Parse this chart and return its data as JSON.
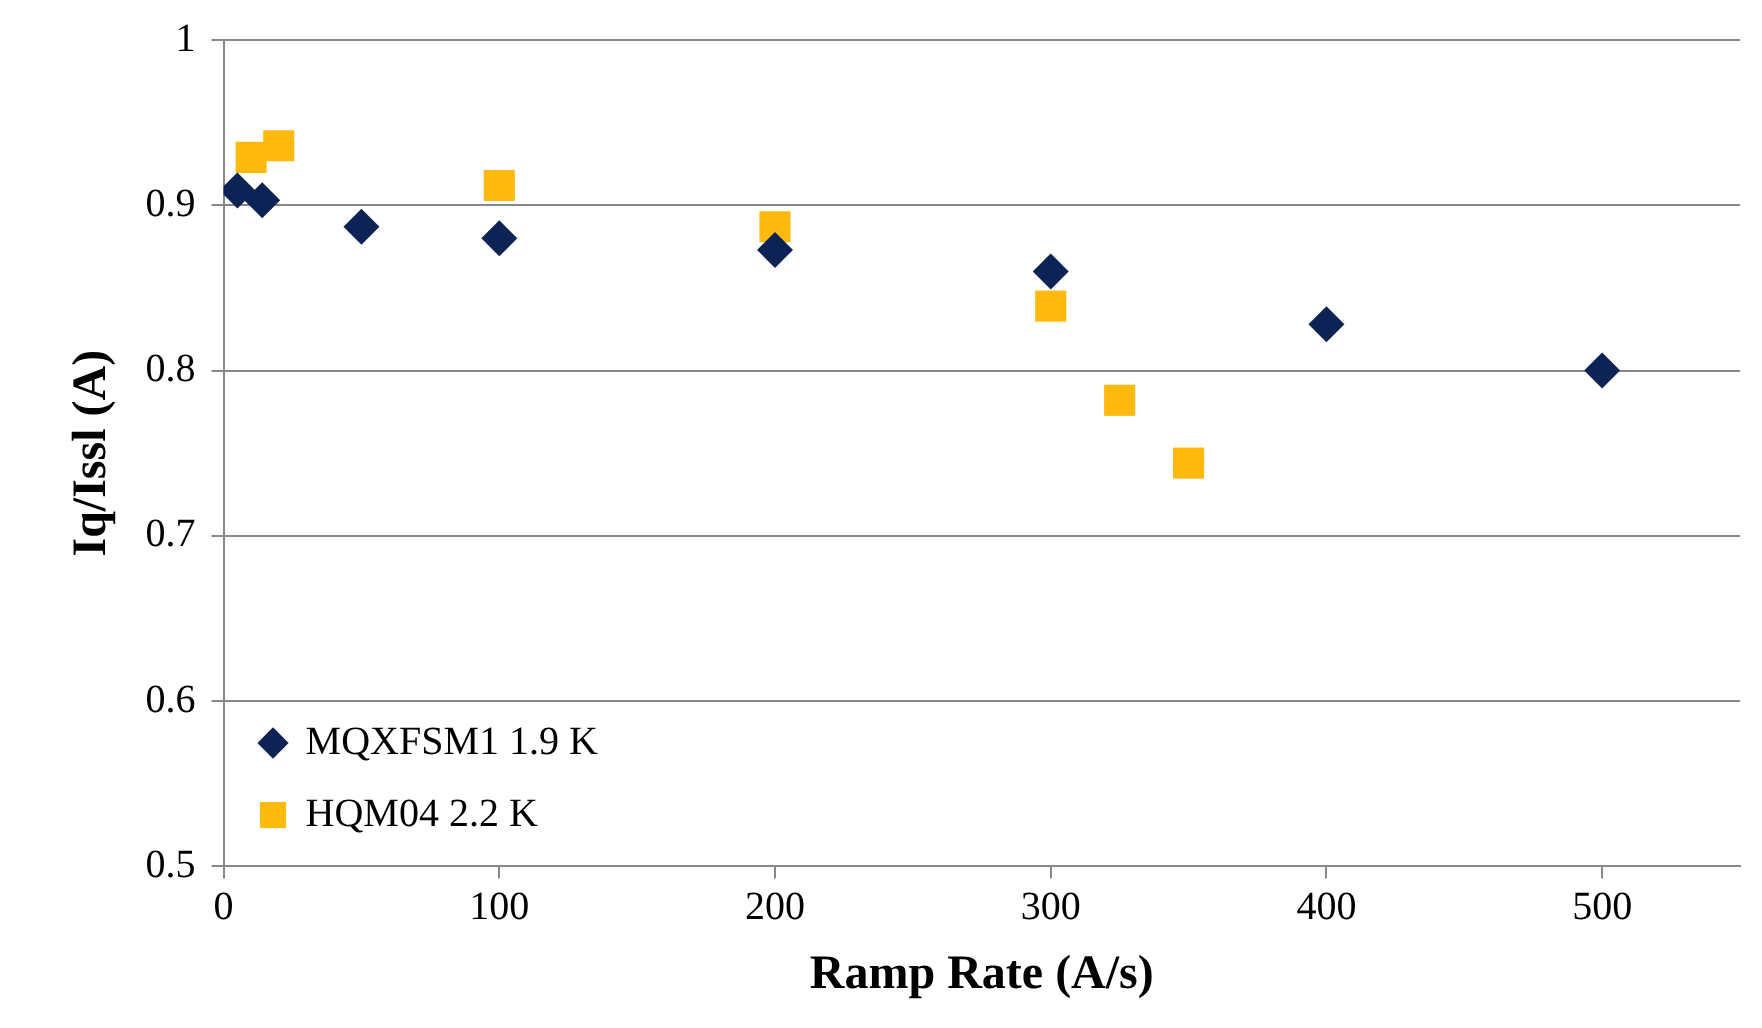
{
  "chart_data": {
    "type": "scatter",
    "xlabel": "Ramp Rate (A/s)",
    "ylabel": "Iq/Issl (A)",
    "xlim": [
      0,
      550
    ],
    "xticks": [
      0,
      100,
      200,
      300,
      400,
      500
    ],
    "ylim": [
      0.5,
      1
    ],
    "yticks": [
      0.5,
      0.6,
      0.7,
      0.8,
      0.9,
      1
    ],
    "grid": "y",
    "legend": "bottom left",
    "series": [
      {
        "name": "MQXFSM1 1.9 K",
        "color": "#0d2356",
        "marker": "diamond",
        "x": [
          5,
          14,
          50,
          100,
          200,
          300,
          400,
          500
        ],
        "values": [
          0.909,
          0.903,
          0.887,
          0.88,
          0.873,
          0.86,
          0.828,
          0.8
        ]
      },
      {
        "name": "HQM04 2.2 K",
        "color": "#ffb90f",
        "marker": "square",
        "x": [
          10,
          20,
          100,
          200,
          300,
          325,
          350
        ],
        "values": [
          0.929,
          0.936,
          0.912,
          0.887,
          0.839,
          0.782,
          0.744
        ]
      }
    ]
  }
}
